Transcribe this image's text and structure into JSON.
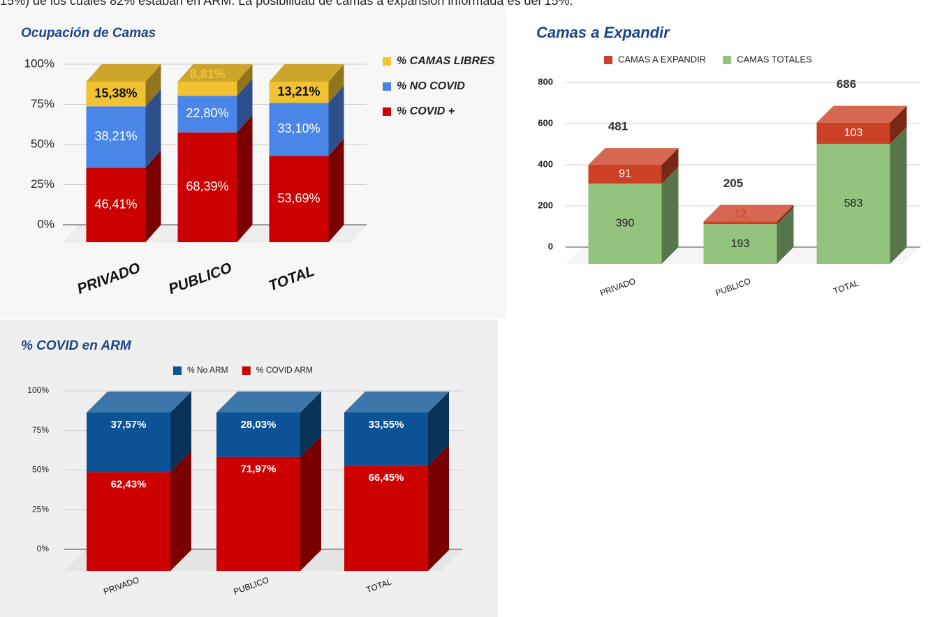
{
  "intro_text": "15%) de los cuales 82% estaban en ARM. La posibilidad de camas a expansión informada es del 15%.",
  "chart_data": [
    {
      "type": "bar3d_stacked",
      "title": "Ocupación de Camas",
      "categories": [
        "PRIVADO",
        "PUBLICO",
        "TOTAL"
      ],
      "series": [
        {
          "name": "% COVID +",
          "color": "#cc0000",
          "values": [
            46.41,
            68.39,
            53.69
          ],
          "value_labels": [
            "46,41%",
            "68,39%",
            "53,69%"
          ]
        },
        {
          "name": "% NO COVID",
          "color": "#4a86e8",
          "values": [
            38.21,
            22.8,
            33.1
          ],
          "value_labels": [
            "38,21%",
            "22,80%",
            "33,10%"
          ]
        },
        {
          "name": "% CAMAS LIBRES",
          "color": "#f1c232",
          "values": [
            15.38,
            8.81,
            13.21
          ],
          "value_labels": [
            "15,38%",
            "8,81%",
            "13,21%"
          ]
        }
      ],
      "ylim": [
        0,
        100
      ],
      "yticks": [
        {
          "value": 0,
          "label": "0%"
        },
        {
          "value": 25,
          "label": "25%"
        },
        {
          "value": 50,
          "label": "50%"
        },
        {
          "value": 75,
          "label": "75%"
        },
        {
          "value": 100,
          "label": "100%"
        }
      ],
      "grid": true,
      "legend": "right"
    },
    {
      "type": "bar3d_stacked",
      "title": "Camas a  Expandir",
      "categories": [
        "PRIVADO",
        "PUBLICO",
        "TOTAL"
      ],
      "series": [
        {
          "name": "CAMAS TOTALES",
          "color": "#93c47d",
          "values": [
            390,
            193,
            583
          ]
        },
        {
          "name": "CAMAS A EXPANDIR",
          "color": "#cc4125",
          "values": [
            91,
            12,
            103
          ]
        }
      ],
      "totals": [
        481,
        205,
        686
      ],
      "ylim": [
        0,
        800
      ],
      "yticks": [
        0,
        200,
        400,
        600,
        800
      ],
      "grid": true,
      "legend": "top"
    },
    {
      "type": "bar3d_stacked",
      "title": "% COVID en ARM",
      "categories": [
        "PRIVADO",
        "PUBLICO",
        "TOTAL"
      ],
      "series": [
        {
          "name": "% COVID ARM",
          "color": "#cc0000",
          "values": [
            62.43,
            71.97,
            66.45
          ],
          "value_labels": [
            "62,43%",
            "71,97%",
            "66,45%"
          ]
        },
        {
          "name": "% No ARM",
          "color": "#0b5394",
          "values": [
            37.57,
            28.03,
            33.55
          ],
          "value_labels": [
            "37,57%",
            "28,03%",
            "33,55%"
          ]
        }
      ],
      "ylim": [
        0,
        100
      ],
      "yticks": [
        {
          "value": 0,
          "label": "0%"
        },
        {
          "value": 25,
          "label": "25%"
        },
        {
          "value": 50,
          "label": "50%"
        },
        {
          "value": 75,
          "label": "75%"
        },
        {
          "value": 100,
          "label": "100%"
        }
      ],
      "grid": true,
      "legend": "top"
    }
  ]
}
